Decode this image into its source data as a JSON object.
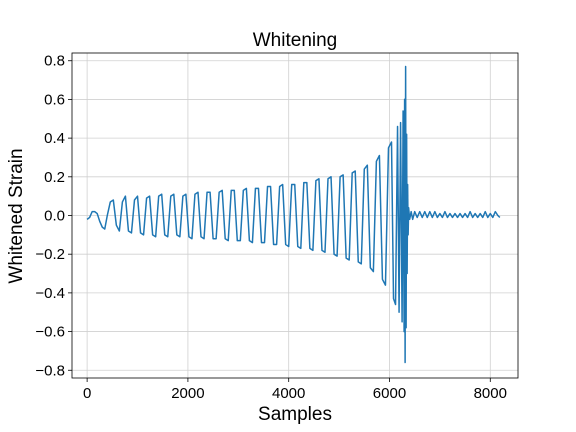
{
  "chart_data": {
    "type": "line",
    "title": "Whitening",
    "xlabel": "Samples",
    "ylabel": "Whitened Strain",
    "xlim": [
      -300,
      8550
    ],
    "ylim": [
      -0.84,
      0.84
    ],
    "grid": true,
    "legend": "none",
    "x_ticks": [
      0,
      2000,
      4000,
      6000,
      8000
    ],
    "x_tick_labels": [
      "0",
      "2000",
      "4000",
      "6000",
      "8000"
    ],
    "y_ticks": [
      -0.8,
      -0.6,
      -0.4,
      -0.2,
      0.0,
      0.2,
      0.4,
      0.6,
      0.8
    ],
    "y_tick_labels": [
      "−0.8",
      "−0.6",
      "−0.4",
      "−0.2",
      "0.0",
      "0.2",
      "0.4",
      "0.6",
      "0.8"
    ],
    "series": [
      {
        "color": "#1f77b4",
        "x": [
          0,
          50,
          100,
          150,
          200,
          250,
          300,
          350,
          400,
          460,
          520,
          580,
          640,
          700,
          760,
          820,
          880,
          940,
          1000,
          1060,
          1120,
          1180,
          1240,
          1300,
          1360,
          1420,
          1480,
          1540,
          1600,
          1660,
          1720,
          1780,
          1840,
          1900,
          1960,
          2020,
          2080,
          2140,
          2200,
          2260,
          2320,
          2380,
          2440,
          2500,
          2560,
          2620,
          2680,
          2740,
          2800,
          2860,
          2920,
          2980,
          3040,
          3100,
          3160,
          3220,
          3280,
          3340,
          3400,
          3460,
          3520,
          3580,
          3640,
          3700,
          3760,
          3820,
          3880,
          3940,
          4000,
          4060,
          4120,
          4180,
          4240,
          4300,
          4360,
          4420,
          4480,
          4540,
          4600,
          4660,
          4720,
          4780,
          4840,
          4900,
          4960,
          5020,
          5080,
          5140,
          5200,
          5260,
          5320,
          5380,
          5440,
          5500,
          5560,
          5620,
          5680,
          5740,
          5800,
          5860,
          5920,
          5980,
          6040,
          6080,
          6120,
          6160,
          6190,
          6220,
          6250,
          6270,
          6290,
          6300,
          6310,
          6320,
          6330,
          6340,
          6350,
          6360,
          6370,
          6380,
          6400,
          6430,
          6460,
          6500,
          6550,
          6600,
          6650,
          6700,
          6750,
          6800,
          6850,
          6900,
          6950,
          7000,
          7050,
          7100,
          7150,
          7200,
          7250,
          7300,
          7350,
          7400,
          7450,
          7500,
          7550,
          7600,
          7650,
          7700,
          7750,
          7800,
          7850,
          7900,
          7950,
          8000,
          8050,
          8100,
          8150,
          8190
        ],
        "y": [
          -0.02,
          -0.01,
          0.02,
          0.02,
          0.01,
          -0.03,
          -0.06,
          -0.07,
          0.0,
          0.07,
          0.08,
          -0.05,
          -0.08,
          0.07,
          0.1,
          -0.08,
          -0.09,
          0.08,
          0.1,
          -0.09,
          -0.1,
          0.09,
          0.1,
          -0.1,
          -0.11,
          0.1,
          0.11,
          -0.1,
          -0.11,
          0.1,
          0.11,
          -0.1,
          -0.11,
          0.1,
          0.11,
          -0.11,
          -0.12,
          0.11,
          0.12,
          -0.11,
          -0.12,
          0.12,
          0.12,
          -0.12,
          -0.12,
          0.12,
          0.13,
          -0.12,
          -0.13,
          0.13,
          0.13,
          -0.13,
          -0.13,
          0.13,
          0.14,
          -0.13,
          -0.14,
          0.14,
          0.14,
          -0.14,
          -0.14,
          0.15,
          0.15,
          -0.15,
          -0.15,
          0.15,
          0.16,
          -0.15,
          -0.16,
          0.16,
          0.16,
          -0.16,
          -0.17,
          0.17,
          0.17,
          -0.17,
          -0.18,
          0.18,
          0.19,
          -0.18,
          -0.19,
          0.19,
          0.2,
          -0.2,
          -0.21,
          0.2,
          0.21,
          -0.22,
          -0.23,
          0.22,
          0.23,
          -0.24,
          -0.25,
          0.24,
          0.26,
          -0.27,
          -0.29,
          0.28,
          0.31,
          -0.33,
          -0.36,
          0.35,
          0.38,
          -0.43,
          -0.46,
          0.46,
          -0.5,
          0.48,
          -0.55,
          0.54,
          -0.6,
          0.6,
          -0.76,
          0.77,
          -0.58,
          0.42,
          -0.3,
          0.16,
          -0.1,
          0.04,
          -0.02,
          0.02,
          -0.02,
          0.02,
          -0.01,
          0.02,
          -0.01,
          0.02,
          -0.01,
          0.02,
          -0.01,
          0.02,
          -0.01,
          0.01,
          -0.01,
          0.02,
          -0.01,
          0.01,
          -0.01,
          0.01,
          -0.01,
          0.01,
          -0.01,
          0.01,
          -0.01,
          0.02,
          -0.01,
          0.01,
          -0.01,
          0.01,
          -0.01,
          0.02,
          -0.01,
          0.01,
          -0.01,
          0.02,
          0.0,
          -0.01
        ]
      }
    ]
  }
}
